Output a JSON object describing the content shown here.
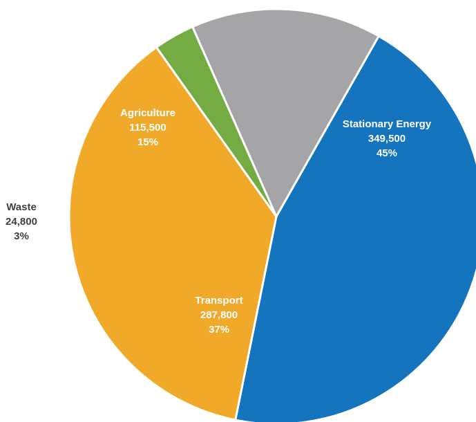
{
  "chart_data": {
    "type": "pie",
    "categories": [
      "Stationary Energy",
      "Transport",
      "Waste",
      "Agriculture"
    ],
    "values": [
      349500,
      287800,
      24800,
      115500
    ],
    "value_labels": [
      "349,500",
      "287,800",
      "24,800",
      "115,500"
    ],
    "percent_labels": [
      "45%",
      "37%",
      "3%",
      "15%"
    ],
    "colors": [
      "#1574BE",
      "#F0A928",
      "#74AB42",
      "#A5A5A7"
    ],
    "label_colors": [
      "#ffffff",
      "#ffffff",
      "#404040",
      "#ffffff"
    ],
    "title": "",
    "legend": "none"
  }
}
